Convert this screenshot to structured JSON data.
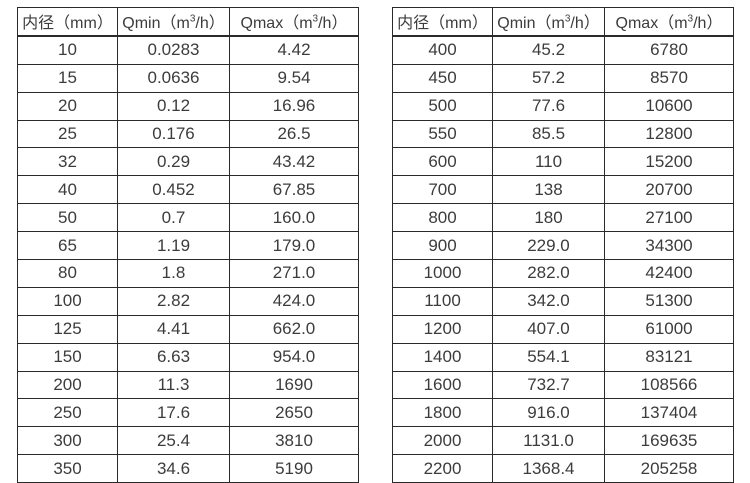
{
  "page": {
    "background": "#ffffff",
    "text_color": "#3c3c3c",
    "border_color": "#2a2a2a"
  },
  "headers": {
    "diameter": "内径（mm）",
    "qmin_pre": "Qmin（m",
    "qmax_pre": "Qmax（m",
    "sup": "3",
    "unit_post": "/h）"
  },
  "tables": [
    {
      "name": "small-diameter-table",
      "rows": [
        [
          "10",
          "0.0283",
          "4.42"
        ],
        [
          "15",
          "0.0636",
          "9.54"
        ],
        [
          "20",
          "0.12",
          "16.96"
        ],
        [
          "25",
          "0.176",
          "26.5"
        ],
        [
          "32",
          "0.29",
          "43.42"
        ],
        [
          "40",
          "0.452",
          "67.85"
        ],
        [
          "50",
          "0.7",
          "160.0"
        ],
        [
          "65",
          "1.19",
          "179.0"
        ],
        [
          "80",
          "1.8",
          "271.0"
        ],
        [
          "100",
          "2.82",
          "424.0"
        ],
        [
          "125",
          "4.41",
          "662.0"
        ],
        [
          "150",
          "6.63",
          "954.0"
        ],
        [
          "200",
          "11.3",
          "1690"
        ],
        [
          "250",
          "17.6",
          "2650"
        ],
        [
          "300",
          "25.4",
          "3810"
        ],
        [
          "350",
          "34.6",
          "5190"
        ]
      ]
    },
    {
      "name": "large-diameter-table",
      "rows": [
        [
          "400",
          "45.2",
          "6780"
        ],
        [
          "450",
          "57.2",
          "8570"
        ],
        [
          "500",
          "77.6",
          "10600"
        ],
        [
          "550",
          "85.5",
          "12800"
        ],
        [
          "600",
          "110",
          "15200"
        ],
        [
          "700",
          "138",
          "20700"
        ],
        [
          "800",
          "180",
          "27100"
        ],
        [
          "900",
          "229.0",
          "34300"
        ],
        [
          "1000",
          "282.0",
          "42400"
        ],
        [
          "1100",
          "342.0",
          "51300"
        ],
        [
          "1200",
          "407.0",
          "61000"
        ],
        [
          "1400",
          "554.1",
          "83121"
        ],
        [
          "1600",
          "732.7",
          "108566"
        ],
        [
          "1800",
          "916.0",
          "137404"
        ],
        [
          "2000",
          "1131.0",
          "169635"
        ],
        [
          "2200",
          "1368.4",
          "205258"
        ]
      ]
    }
  ]
}
